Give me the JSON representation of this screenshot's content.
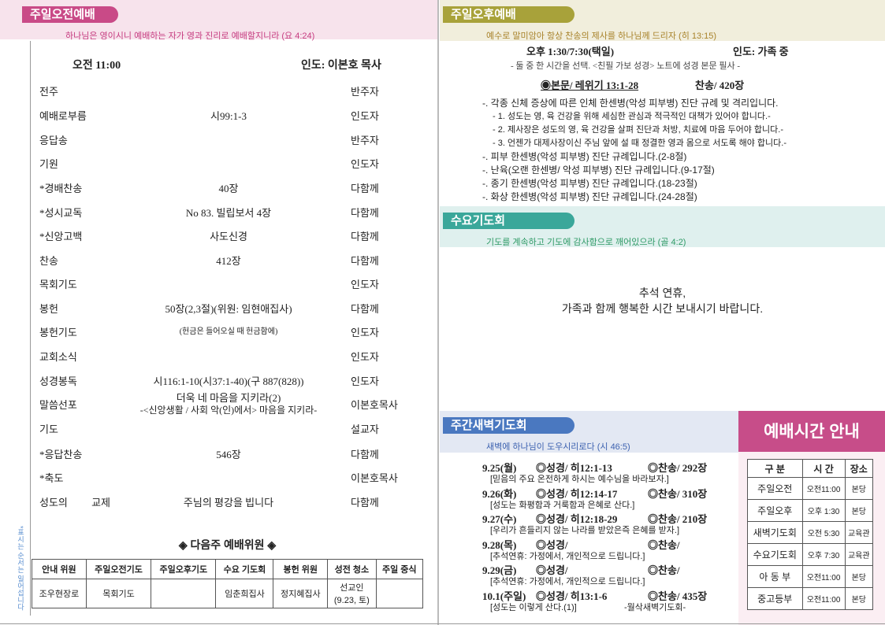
{
  "morning": {
    "title": "주일오전예배",
    "verse": "하나님은 영이시니 예배하는 자가 영과 진리로 예배할지니라 (요 4:24)",
    "time": "오전 11:00",
    "leader": "인도: 이본호 목사",
    "order": [
      [
        "전주",
        null,
        "반주자"
      ],
      [
        "예배로부름",
        "시99:1-3",
        "인도자"
      ],
      [
        "응답송",
        null,
        "반주자"
      ],
      [
        "기원",
        null,
        "인도자"
      ],
      [
        "*경배찬송",
        "40장",
        "다함께"
      ],
      [
        "*성시교독",
        "No 83. 빌립보서 4장",
        "다함께"
      ],
      [
        "*신앙고백",
        "사도신경",
        "다함께"
      ],
      [
        "찬송",
        "412장",
        "다함께"
      ],
      [
        "목회기도",
        null,
        "인도자"
      ],
      [
        "봉헌",
        "50장(2,3절)(위원: 임현애집사)",
        "다함께"
      ],
      [
        "봉헌기도",
        "(헌금은 들어오실 때 헌금함에)",
        "인도자"
      ],
      [
        "교회소식",
        null,
        "인도자"
      ],
      [
        "성경봉독",
        "시116:1-10(시37:1-40)(구 887(828))",
        "인도자"
      ],
      [
        "말씀선포",
        [
          "더욱 네 마음을 지키라(2)",
          "-<신앙생활 / 사회 악(인)에서> 마음을 지키라-"
        ],
        "이본호목사"
      ],
      [
        "기도",
        null,
        "설교자"
      ],
      [
        "*응답찬송",
        "546장",
        "다함께"
      ],
      [
        "*축도",
        null,
        "이본호목사"
      ],
      [
        "성도의 교제",
        "주님의 평강을 빕니다",
        "다함께"
      ]
    ],
    "side_note": "*표시는 순서는 일어섭니다",
    "next_week": {
      "title": "◈ 다음주 예배위원 ◈",
      "headers": [
        "안내 위원",
        "주일오전기도",
        "주일오후기도",
        "수요 기도회",
        "봉헌 위원",
        "성전 청소",
        "주일 중식"
      ],
      "row": [
        "조우현장로",
        "목회기도",
        null,
        "임춘희집사",
        "정지혜집사",
        [
          "선교인",
          "(9.23, 토)"
        ],
        null
      ]
    }
  },
  "afternoon": {
    "title": "주일오후예배",
    "verse": "예수로 말미암아 항상 찬송의 제사를 하나님께 드리자 (히 13:15)",
    "time": "오후 1:30/7:30(택일)",
    "leader": "인도: 가족 중",
    "note": "- 둘 중 한 시간을 선택. <친필 가보 성경> 노트에 성경 본문 필사 -",
    "text": "◉본문/ 레위기 13:1-28",
    "hymn": "찬송/ 420장",
    "lines": [
      "-. 각종 신체 증상에 따른 인체 한센병(악성 피부병) 진단 규례 및 격리입니다.",
      "- 1. 성도는 영, 육 건강을 위해 세심한 관심과 적극적인 대책가 있어야 합니다.-",
      "- 2. 제사장은 성도의 영, 육 건강을 살펴 진단과 처방, 치료에 마음 두어야 합니다.-",
      "- 3. 언젠가 대제사장이신 주님 앞에 설 때 정결한 영과 몸으로 서도록 해야 합니다.-",
      "-. 피부 한센병(악성 피부병) 진단 규례입니다.(2-8절)",
      "-. 난육(오랜 한센병/ 악성 피부병) 진단 규례입니다.(9-17절)",
      "-. 종기 한센병(악성 피부병) 진단 규례입니다.(18-23절)",
      "-. 화상 한센병(악성 피부병) 진단 규례입니다.(24-28절)"
    ]
  },
  "wednesday": {
    "title": "수요기도회",
    "verse": "기도를 계속하고 기도에 감사함으로 깨어있으라 (골 4:2)",
    "message": [
      "추석 연휴,",
      "가족과 함께 행복한 시간 보내시기 바랍니다."
    ]
  },
  "dawn": {
    "title": "주간새벽기도회",
    "verse": "새벽에 하나님이 도우시리로다 (시 46:5)",
    "entries": [
      {
        "date": "9.25(월)",
        "text": "◎성경/ 히12:1-13",
        "hymn": "◎찬송/ 292장",
        "note": "[믿음의 주요 온전하게 하시는 예수님을 바라보자.]"
      },
      {
        "date": "9.26(화)",
        "text": "◎성경/ 히12:14-17",
        "hymn": "◎찬송/ 310장",
        "note": "[성도는 화평함과 거룩함과 은혜로 산다.]"
      },
      {
        "date": "9.27(수)",
        "text": "◎성경/ 히12:18-29",
        "hymn": "◎찬송/ 210장",
        "note": "[우리가 흔들리지 않는 나라를 받았은즉 은혜를 받자.]"
      },
      {
        "date": "9.28(목)",
        "text": "◎성경/",
        "hymn": "◎찬송/",
        "note": "[추석연휴: 가정에서, 개인적으로 드립니다.]"
      },
      {
        "date": "9.29(금)",
        "text": "◎성경/",
        "hymn": "◎찬송/",
        "note": "[추석연휴: 가정에서, 개인적으로 드립니다.]"
      },
      {
        "date": "10.1(주일)",
        "text": "◎성경/ 히13:1-6",
        "hymn": "◎찬송/ 435장",
        "note": "[성도는 이렇게 산다.(1)]",
        "extra": "-월삭새벽기도회-"
      }
    ]
  },
  "schedule": {
    "title": "예배시간 안내",
    "headers": [
      "구 분",
      "시 간",
      "장소"
    ],
    "rows": [
      [
        "주일오전",
        "오전11:00",
        "본당"
      ],
      [
        "주일오후",
        "오후 1:30",
        "본당"
      ],
      [
        "새벽기도회",
        "오전 5:30",
        "교육관"
      ],
      [
        "수요기도회",
        "오후 7:30",
        "교육관"
      ],
      [
        "아 동 부",
        "오전11:00",
        "본당"
      ],
      [
        "중고등부",
        "오전11:00",
        "본당"
      ]
    ]
  }
}
